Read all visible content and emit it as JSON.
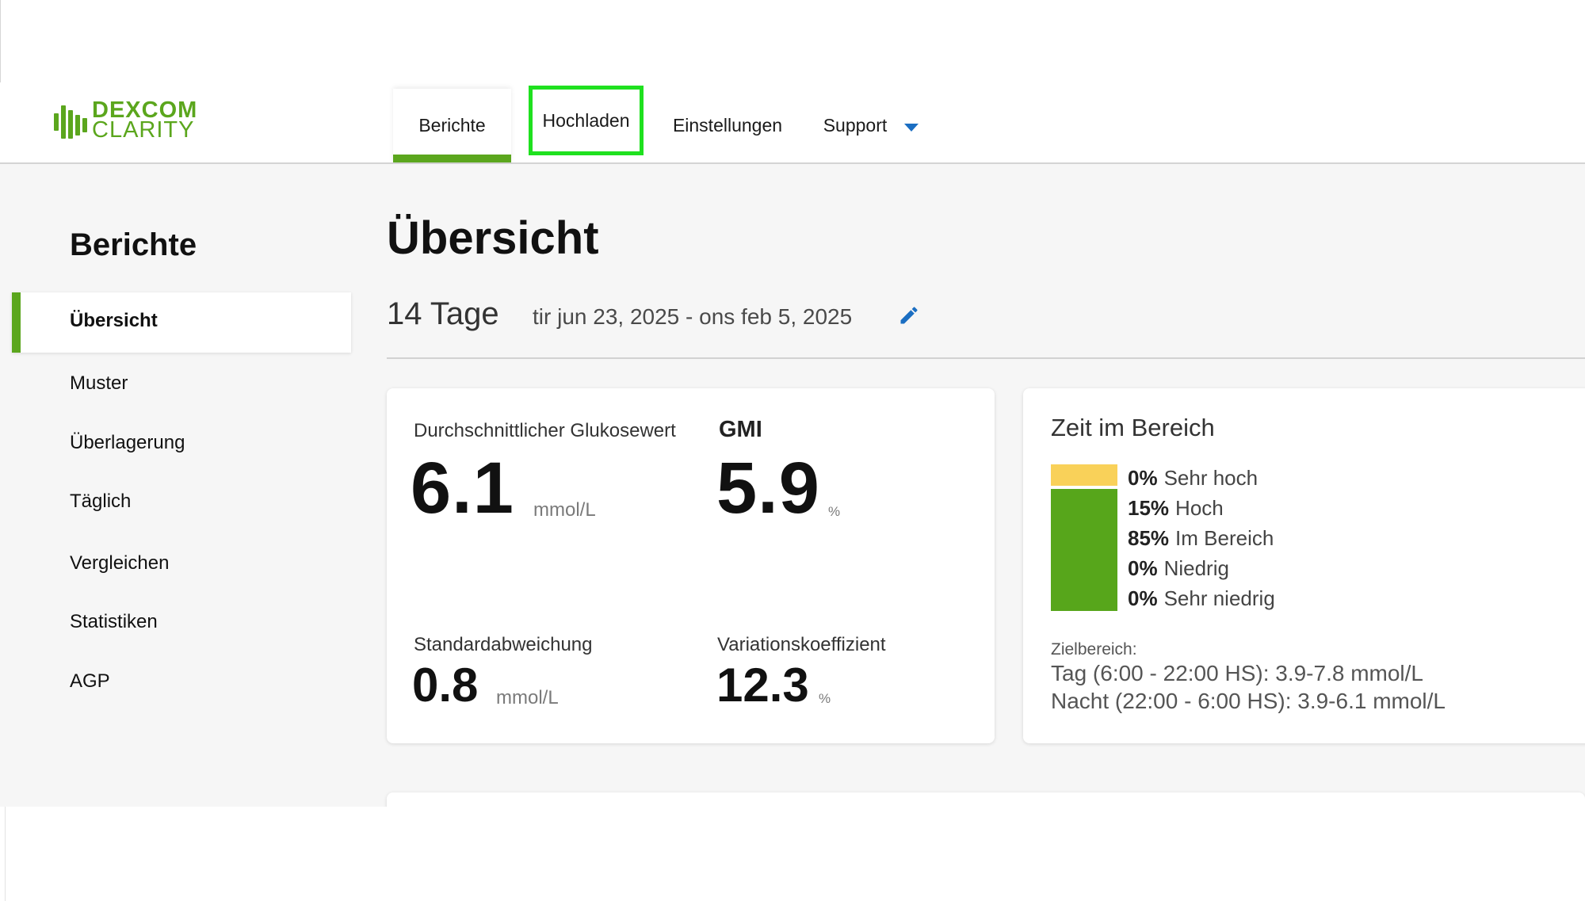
{
  "app": {
    "logo_top": "DEXCOM",
    "logo_bottom": "CLARITY"
  },
  "nav": {
    "tabs": [
      {
        "label": "Berichte"
      },
      {
        "label": "Hochladen"
      },
      {
        "label": "Einstellungen"
      },
      {
        "label": "Support"
      }
    ],
    "active": "Berichte",
    "highlighted": "Hochladen"
  },
  "sidebar": {
    "title": "Berichte",
    "items": [
      {
        "label": "Übersicht"
      },
      {
        "label": "Muster"
      },
      {
        "label": "Überlagerung"
      },
      {
        "label": "Täglich"
      },
      {
        "label": "Vergleichen"
      },
      {
        "label": "Statistiken"
      },
      {
        "label": "AGP"
      }
    ],
    "active": "Übersicht"
  },
  "main": {
    "title": "Übersicht",
    "range_days": "14 Tage",
    "range_dates": "tir jun 23, 2025 - ons feb 5, 2025"
  },
  "stats": {
    "avg_label": "Durchschnittlicher Glukosewert",
    "avg_value": "6.1",
    "avg_unit": "mmol/L",
    "gmi_label": "GMI",
    "gmi_value": "5.9",
    "gmi_unit": "%",
    "sd_label": "Standardabweichung",
    "sd_value": "0.8",
    "sd_unit": "mmol/L",
    "cv_label": "Variationskoeffizient",
    "cv_value": "12.3",
    "cv_unit": "%"
  },
  "time_in_range": {
    "title": "Zeit im Bereich",
    "rows": [
      {
        "pct": "0%",
        "label": "Sehr hoch",
        "value": 0
      },
      {
        "pct": "15%",
        "label": "Hoch",
        "value": 15
      },
      {
        "pct": "85%",
        "label": "Im Bereich",
        "value": 85
      },
      {
        "pct": "0%",
        "label": "Niedrig",
        "value": 0
      },
      {
        "pct": "0%",
        "label": "Sehr niedrig",
        "value": 0
      }
    ],
    "target_label": "Zielbereich:",
    "target_day": "Tag (6:00 - 22:00 HS): 3.9-7.8 mmol/L",
    "target_night": "Nacht (22:00 - 6:00 HS): 3.9-6.1 mmol/L"
  },
  "colors": {
    "brand_green": "#5ba61d",
    "high_yellow": "#f9d159",
    "in_range_green": "#57a61b",
    "accent_blue": "#1b6ec2",
    "highlight_box": "#1fe11f"
  },
  "icons": {
    "edit": "pencil-icon",
    "support_dropdown": "caret-down-icon"
  }
}
